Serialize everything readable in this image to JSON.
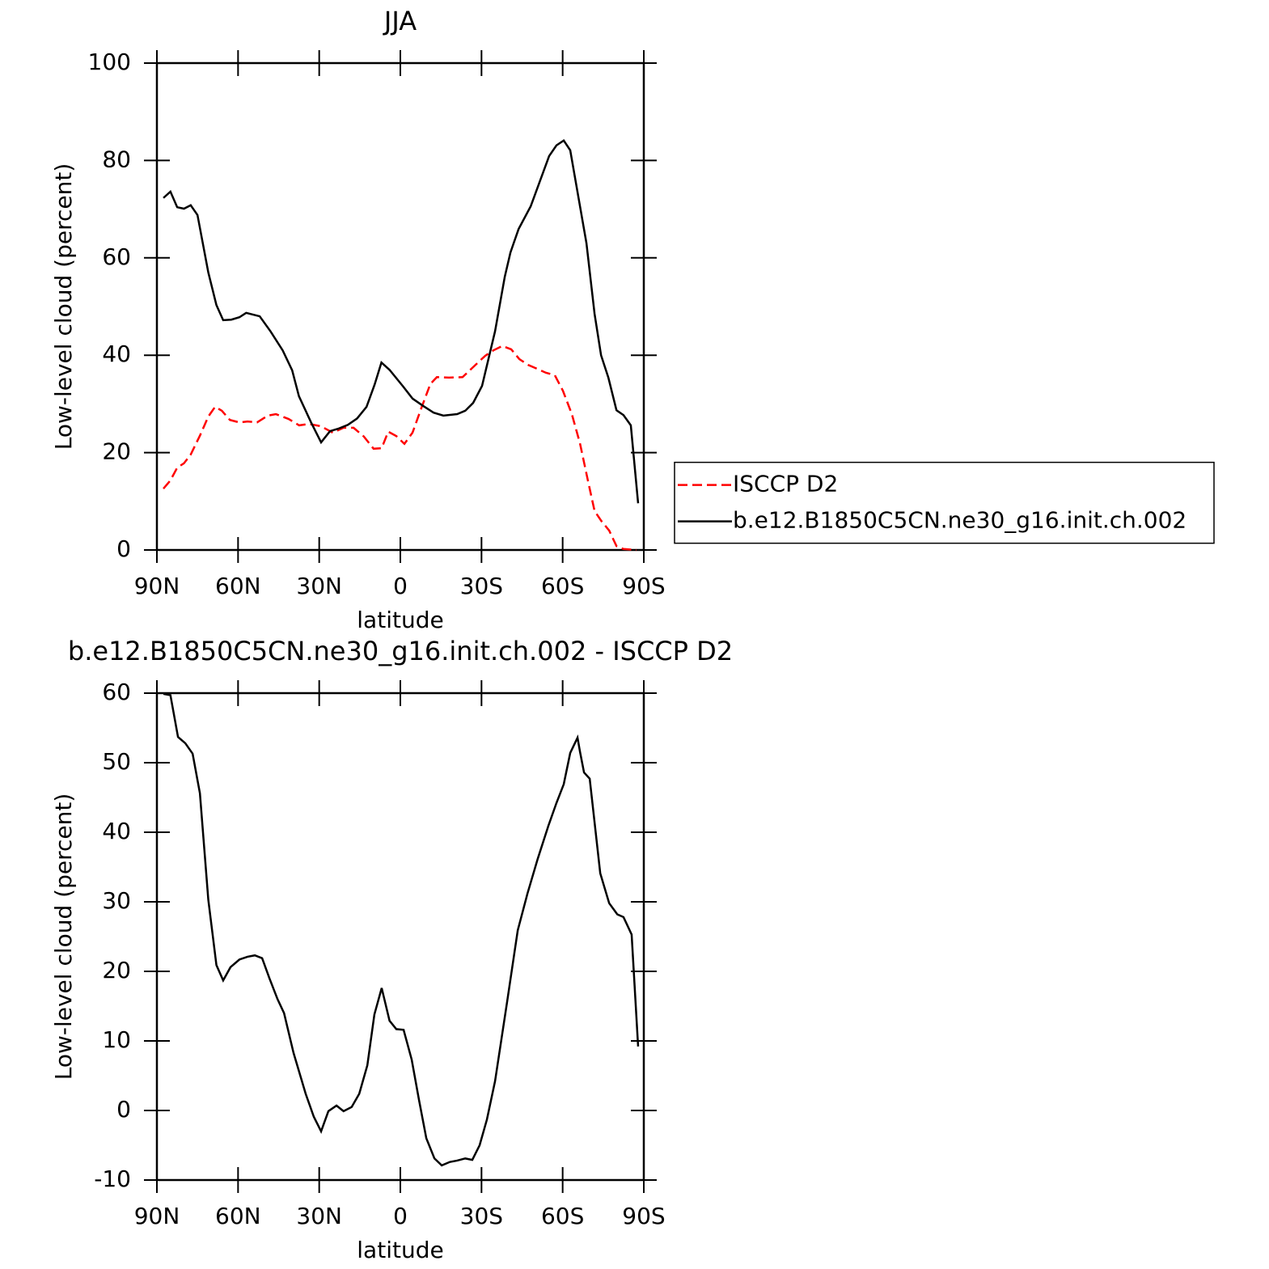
{
  "chart_data": [
    {
      "type": "line",
      "title": "JJA",
      "xlabel": "latitude",
      "ylabel": "Low-level cloud (percent)",
      "xlim": [
        90,
        -90
      ],
      "xticks": [
        {
          "value": 90,
          "label": "90N"
        },
        {
          "value": 60,
          "label": "60N"
        },
        {
          "value": 30,
          "label": "30N"
        },
        0,
        {
          "value": -30,
          "label": "30S"
        },
        {
          "value": -60,
          "label": "60S"
        },
        {
          "value": -90,
          "label": "90S"
        }
      ],
      "ylim": [
        0,
        100
      ],
      "yticks": [
        0,
        20,
        40,
        60,
        80,
        100
      ],
      "legend": "right",
      "series": [
        {
          "name": "ISCCP D2",
          "color": "#ff0000",
          "style": "dashed",
          "x": [
            87.6,
            85,
            82.5,
            80,
            77.5,
            74,
            71,
            68.5,
            66,
            63,
            59.5,
            56.5,
            53,
            49,
            46,
            41.3,
            37.4,
            33.8,
            29.3,
            25,
            21,
            17.3,
            13.5,
            9.9,
            6.9,
            4.5,
            1.5,
            -1.5,
            -4.5,
            -7.8,
            -11.1,
            -13.5,
            -18,
            -23,
            -26.6,
            -31.4,
            -34.4,
            -37.7,
            -41,
            -44,
            -47.3,
            -50.6,
            -53.8,
            -57.1,
            -60.1,
            -63.4,
            -66.4,
            -69.4,
            -71.8,
            -74.5,
            -77.2,
            -79.9,
            -82.5,
            -87.3
          ],
          "values": [
            12.6,
            14.3,
            16.9,
            17.8,
            19.6,
            23.6,
            27.4,
            29.4,
            28.6,
            26.7,
            26.2,
            26.4,
            26.2,
            27.6,
            27.9,
            26.9,
            25.6,
            25.9,
            25.4,
            24.1,
            25.1,
            25.1,
            23.3,
            20.8,
            20.9,
            24.3,
            23.4,
            21.8,
            24.1,
            29.2,
            34.1,
            35.5,
            35.4,
            35.5,
            37.4,
            39.9,
            41,
            41.9,
            41.2,
            39.2,
            38,
            37.2,
            36.4,
            35.9,
            32.7,
            27.9,
            21.9,
            14.1,
            8,
            5.8,
            4,
            0.8,
            0.2,
            0
          ]
        },
        {
          "name": "b.e12.B1850C5CN.ne30_g16.init.ch.002",
          "color": "#000000",
          "style": "solid",
          "x": [
            87.6,
            85,
            82.5,
            80,
            77.5,
            75,
            71,
            68,
            65.5,
            62.5,
            59.5,
            57,
            52,
            48,
            43.5,
            40,
            37.5,
            33,
            29.3,
            26,
            23,
            19.4,
            16,
            12.5,
            9.5,
            7,
            4,
            -1,
            -4.5,
            -8.4,
            -12.3,
            -15.9,
            -21,
            -24,
            -26.9,
            -30.2,
            -35,
            -38.6,
            -40.7,
            -43.7,
            -48.2,
            -55,
            -57.7,
            -60.4,
            -62.8,
            -68.8,
            -71.8,
            -74.2,
            -76.9,
            -79.9,
            -82.5,
            -85.2,
            -87.9
          ],
          "values": [
            72.3,
            73.6,
            70.4,
            70.1,
            70.8,
            68.8,
            57,
            50.3,
            47.2,
            47.3,
            47.8,
            48.7,
            48,
            44.9,
            41,
            36.9,
            31.6,
            26.2,
            22.1,
            24.4,
            24.9,
            25.7,
            27,
            29.4,
            34,
            38.5,
            37,
            33.6,
            31.1,
            29.6,
            28.2,
            27.6,
            27.9,
            28.6,
            30.2,
            33.7,
            44.9,
            56.1,
            61.1,
            65.9,
            70.6,
            80.9,
            83.1,
            84.1,
            82.1,
            63,
            48.5,
            40,
            35.4,
            28.7,
            27.7,
            25.6,
            9.6
          ]
        }
      ]
    },
    {
      "type": "line",
      "title": "b.e12.B1850C5CN.ne30_g16.init.ch.002 - ISCCP D2",
      "xlabel": "latitude",
      "ylabel": "Low-level cloud (percent)",
      "xlim": [
        90,
        -90
      ],
      "xticks": [
        {
          "value": 90,
          "label": "90N"
        },
        {
          "value": 60,
          "label": "60N"
        },
        {
          "value": 30,
          "label": "30N"
        },
        0,
        {
          "value": -30,
          "label": "30S"
        },
        {
          "value": -60,
          "label": "60S"
        },
        {
          "value": -90,
          "label": "90S"
        }
      ],
      "ylim": [
        -10,
        60
      ],
      "yticks": [
        -10,
        0,
        10,
        20,
        30,
        40,
        50,
        60
      ],
      "series": [
        {
          "color": "#000000",
          "style": "solid",
          "x": [
            87.6,
            85,
            82.2,
            79.5,
            76.8,
            74.1,
            71,
            68,
            65.5,
            62.8,
            59.5,
            56.5,
            53.8,
            51.1,
            48.4,
            45.4,
            43,
            39.5,
            35,
            32,
            29.3,
            26.6,
            23.6,
            21,
            18,
            15.2,
            12.2,
            9.6,
            6.9,
            4,
            1.5,
            -1.2,
            -4.2,
            -6.9,
            -9.6,
            -12.6,
            -15.3,
            -18.3,
            -21,
            -24,
            -26.6,
            -29.3,
            -32,
            -35,
            -39.5,
            -43.4,
            -47,
            -50.8,
            -54.7,
            -57.7,
            -60.4,
            -62.8,
            -65.5,
            -66.4,
            -67.9,
            -70,
            -73.9,
            -77.2,
            -80.2,
            -82.5,
            -85.5,
            -87.9
          ],
          "values": [
            59.9,
            59.7,
            53.7,
            52.8,
            51.3,
            45.6,
            30.3,
            20.9,
            18.7,
            20.6,
            21.7,
            22.1,
            22.3,
            21.9,
            19,
            16,
            14,
            8.3,
            2.4,
            -0.9,
            -3,
            -0.1,
            0.7,
            -0.1,
            0.5,
            2.4,
            6.5,
            13.8,
            17.6,
            12.9,
            11.7,
            11.6,
            7.3,
            1.5,
            -4,
            -6.9,
            -7.9,
            -7.4,
            -7.2,
            -6.9,
            -7.1,
            -5,
            -1.3,
            4.2,
            15.7,
            25.9,
            31.2,
            36.2,
            40.9,
            44.2,
            46.9,
            51.4,
            53.6,
            51.6,
            48.6,
            47.7,
            34.1,
            29.8,
            28.2,
            27.8,
            25.3,
            9.2
          ]
        }
      ]
    }
  ]
}
